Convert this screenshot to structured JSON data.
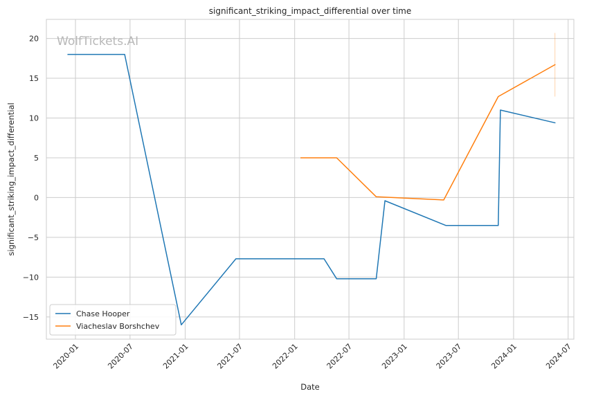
{
  "watermark": "WolfTickets.AI",
  "chart_data": {
    "type": "line",
    "title": "significant_striking_impact_differential over time",
    "xlabel": "Date",
    "ylabel": "significant_striking_impact_differential",
    "x_is_date": true,
    "xlim": [
      "2019-09-26",
      "2024-07-20"
    ],
    "ylim": [
      -17.8,
      22.4
    ],
    "x_ticks": [
      "2020-01",
      "2020-07",
      "2021-01",
      "2021-07",
      "2022-01",
      "2022-07",
      "2023-01",
      "2023-07",
      "2024-01",
      "2024-07"
    ],
    "y_ticks": [
      -15,
      -10,
      -5,
      0,
      5,
      10,
      15,
      20
    ],
    "grid": true,
    "legend_position": "lower-left",
    "series": [
      {
        "name": "Chase Hooper",
        "color": "#1f77b4",
        "points": [
          {
            "x": "2019-12-07",
            "y": 18.0
          },
          {
            "x": "2020-06-13",
            "y": 18.0
          },
          {
            "x": "2020-12-19",
            "y": -16.0
          },
          {
            "x": "2021-06-19",
            "y": -7.7
          },
          {
            "x": "2022-04-09",
            "y": -7.7
          },
          {
            "x": "2022-05-21",
            "y": -10.2
          },
          {
            "x": "2022-09-30",
            "y": -10.2
          },
          {
            "x": "2022-10-29",
            "y": -0.4
          },
          {
            "x": "2023-05-20",
            "y": -3.5
          },
          {
            "x": "2023-11-11",
            "y": -3.5
          },
          {
            "x": "2023-11-18",
            "y": 11.0
          },
          {
            "x": "2024-05-18",
            "y": 9.4
          }
        ]
      },
      {
        "name": "Viacheslav Borshchev",
        "color": "#ff7f0e",
        "points": [
          {
            "x": "2022-01-22",
            "y": 5.0
          },
          {
            "x": "2022-05-21",
            "y": 5.0
          },
          {
            "x": "2022-09-30",
            "y": 0.1
          },
          {
            "x": "2023-05-13",
            "y": -0.3
          },
          {
            "x": "2023-11-11",
            "y": 12.7
          },
          {
            "x": "2024-05-18",
            "y": 16.7
          }
        ],
        "error_band": {
          "x": "2024-05-18",
          "low": 12.7,
          "high": 20.7
        }
      }
    ]
  }
}
